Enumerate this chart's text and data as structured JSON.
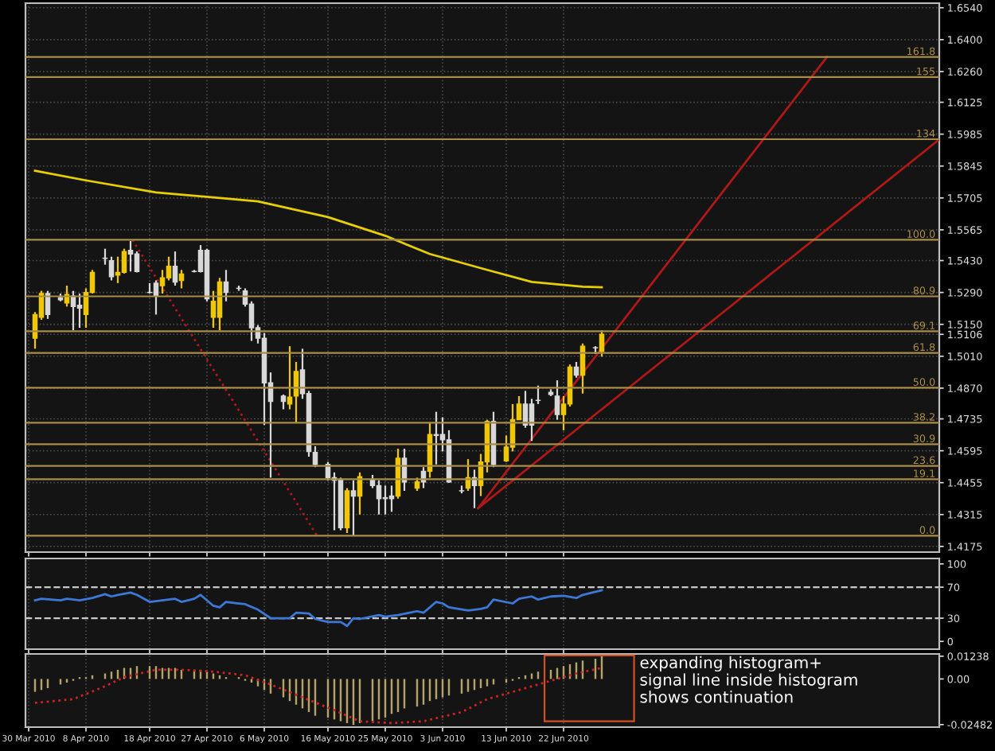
{
  "chart_data": [
    {
      "type": "candlestick",
      "x": [
        "2010-03-31",
        "2010-04-01",
        "2010-04-02",
        "2010-04-04",
        "2010-04-05",
        "2010-04-06",
        "2010-04-07",
        "2010-04-08",
        "2010-04-09",
        "2010-04-11",
        "2010-04-12",
        "2010-04-13",
        "2010-04-14",
        "2010-04-15",
        "2010-04-16",
        "2010-04-18",
        "2010-04-19",
        "2010-04-20",
        "2010-04-21",
        "2010-04-22",
        "2010-04-23",
        "2010-04-25",
        "2010-04-26",
        "2010-04-27",
        "2010-04-28",
        "2010-04-29",
        "2010-04-30",
        "2010-05-02",
        "2010-05-03",
        "2010-05-04",
        "2010-05-05",
        "2010-05-06",
        "2010-05-07",
        "2010-05-09",
        "2010-05-10",
        "2010-05-11",
        "2010-05-12",
        "2010-05-13",
        "2010-05-14",
        "2010-05-16",
        "2010-05-17",
        "2010-05-18",
        "2010-05-19",
        "2010-05-20",
        "2010-05-21",
        "2010-05-23",
        "2010-05-24",
        "2010-05-25",
        "2010-05-26",
        "2010-05-27",
        "2010-05-28",
        "2010-05-30",
        "2010-05-31",
        "2010-06-01",
        "2010-06-02",
        "2010-06-03",
        "2010-06-04",
        "2010-06-06",
        "2010-06-07",
        "2010-06-08",
        "2010-06-09",
        "2010-06-10",
        "2010-06-11",
        "2010-06-13",
        "2010-06-14",
        "2010-06-15",
        "2010-06-16",
        "2010-06-17",
        "2010-06-18",
        "2010-06-20",
        "2010-06-21",
        "2010-06-22",
        "2010-06-23",
        "2010-06-24",
        "2010-06-25",
        "2010-06-27",
        "2010-06-28"
      ],
      "ohlc": [
        [
          1.5089,
          1.5204,
          1.5043,
          1.5193
        ],
        [
          1.5181,
          1.5297,
          1.517,
          1.5285
        ],
        [
          1.5285,
          1.5297,
          1.5174,
          1.5193
        ],
        [
          1.5267,
          1.5285,
          1.5251,
          1.5258
        ],
        [
          1.5244,
          1.532,
          1.5228,
          1.5281
        ],
        [
          1.5274,
          1.5297,
          1.5124,
          1.5228
        ],
        [
          1.5234,
          1.5285,
          1.5135,
          1.5221
        ],
        [
          1.5193,
          1.5308,
          1.5135,
          1.529
        ],
        [
          1.529,
          1.5389,
          1.5285,
          1.5378
        ],
        [
          1.544,
          1.5482,
          1.5412,
          1.544
        ],
        [
          1.5429,
          1.5447,
          1.5343,
          1.5359
        ],
        [
          1.5366,
          1.5447,
          1.5331,
          1.5378
        ],
        [
          1.5378,
          1.5482,
          1.5373,
          1.547
        ],
        [
          1.5475,
          1.5516,
          1.5382,
          1.5459
        ],
        [
          1.5459,
          1.547,
          1.5378,
          1.5382
        ],
        [
          1.529,
          1.5331,
          1.5285,
          1.529
        ],
        [
          1.5331,
          1.5343,
          1.5193,
          1.5274
        ],
        [
          1.532,
          1.5389,
          1.5285,
          1.5354
        ],
        [
          1.5354,
          1.5447,
          1.5343,
          1.5405
        ],
        [
          1.5405,
          1.547,
          1.532,
          1.5336
        ],
        [
          1.5343,
          1.5389,
          1.5308,
          1.5371
        ],
        [
          1.5382,
          1.5389,
          1.5378,
          1.5382
        ],
        [
          1.5475,
          1.5498,
          1.5378,
          1.5382
        ],
        [
          1.5475,
          1.5482,
          1.5251,
          1.5262
        ],
        [
          1.5181,
          1.5297,
          1.5135,
          1.5251
        ],
        [
          1.5181,
          1.5354,
          1.5124,
          1.5336
        ],
        [
          1.5336,
          1.5389,
          1.5251,
          1.529
        ],
        [
          1.5308,
          1.532,
          1.5297,
          1.5308
        ],
        [
          1.5297,
          1.5308,
          1.5228,
          1.5239
        ],
        [
          1.5239,
          1.5251,
          1.5077,
          1.5135
        ],
        [
          1.5135,
          1.5147,
          1.5066,
          1.5089
        ],
        [
          1.5089,
          1.5112,
          1.4708,
          1.4893
        ],
        [
          1.4893,
          1.4939,
          1.4477,
          1.4812
        ],
        [
          1.4835,
          1.4842,
          1.4777,
          1.4812
        ],
        [
          1.48,
          1.5054,
          1.4777,
          1.483
        ],
        [
          1.4835,
          1.4985,
          1.4719,
          1.4943
        ],
        [
          1.495,
          1.5043,
          1.4823,
          1.4846
        ],
        [
          1.4846,
          1.4858,
          1.4569,
          1.4592
        ],
        [
          1.4588,
          1.4615,
          1.4523,
          1.4535
        ],
        [
          1.4535,
          1.4546,
          1.4465,
          1.4477
        ],
        [
          1.4477,
          1.45,
          1.4246,
          1.4465
        ],
        [
          1.4465,
          1.4477,
          1.4246,
          1.4257
        ],
        [
          1.4257,
          1.4431,
          1.4234,
          1.4419
        ],
        [
          1.4419,
          1.4465,
          1.4223,
          1.4396
        ],
        [
          1.4396,
          1.45,
          1.4315,
          1.4481
        ],
        [
          1.4465,
          1.4489,
          1.4431,
          1.4442
        ],
        [
          1.4442,
          1.4465,
          1.4315,
          1.4385
        ],
        [
          1.4389,
          1.4442,
          1.4315,
          1.4385
        ],
        [
          1.4396,
          1.4442,
          1.4327,
          1.4385
        ],
        [
          1.4396,
          1.4604,
          1.4385,
          1.4562
        ],
        [
          1.4562,
          1.4604,
          1.4419,
          1.4458
        ],
        [
          1.4431,
          1.4477,
          1.4419,
          1.4458
        ],
        [
          1.4505,
          1.4523,
          1.4431,
          1.4458
        ],
        [
          1.4505,
          1.4719,
          1.4477,
          1.4666
        ],
        [
          1.4666,
          1.4766,
          1.4535,
          1.4662
        ],
        [
          1.4666,
          1.4742,
          1.4592,
          1.4643
        ],
        [
          1.4643,
          1.4685,
          1.4454,
          1.4458
        ],
        [
          1.4419,
          1.4442,
          1.4408,
          1.4419
        ],
        [
          1.4431,
          1.4558,
          1.4419,
          1.4477
        ],
        [
          1.4477,
          1.4512,
          1.4343,
          1.4442
        ],
        [
          1.4442,
          1.4581,
          1.4396,
          1.4546
        ],
        [
          1.4546,
          1.4731,
          1.45,
          1.4724
        ],
        [
          1.4724,
          1.4766,
          1.4523,
          1.4535
        ],
        [
          1.4551,
          1.4662,
          1.4546,
          1.4611
        ],
        [
          1.4611,
          1.48,
          1.4592,
          1.4731
        ],
        [
          1.4731,
          1.4835,
          1.4731,
          1.48
        ],
        [
          1.48,
          1.4858,
          1.4696,
          1.4708
        ],
        [
          1.48,
          1.4823,
          1.4638,
          1.4708
        ],
        [
          1.4816,
          1.4881,
          1.48,
          1.4816
        ],
        [
          1.4851,
          1.4865,
          1.4835,
          1.4842
        ],
        [
          1.4835,
          1.4904,
          1.4731,
          1.4754
        ],
        [
          1.4754,
          1.4835,
          1.4685,
          1.48
        ],
        [
          1.48,
          1.4974,
          1.4789,
          1.4962
        ],
        [
          1.4962,
          1.4985,
          1.4916,
          1.4927
        ],
        [
          1.4927,
          1.5066,
          1.4846,
          1.5054
        ],
        [
          1.5047,
          1.5054,
          1.502,
          1.5047
        ],
        [
          1.5031,
          1.5124,
          1.5008,
          1.5106
        ]
      ],
      "colors": [
        "#f0c800",
        "#f0c800",
        "#d8d8d8",
        "#d8d8d8",
        "#f0c800",
        "#d8d8d8",
        "#d8d8d8",
        "#f0c800",
        "#f0c800",
        "#d8d8d8",
        "#d8d8d8",
        "#f0c800",
        "#f0c800",
        "#d8d8d8",
        "#d8d8d8",
        "#d8d8d8",
        "#d8d8d8",
        "#f0c800",
        "#f0c800",
        "#d8d8d8",
        "#f0c800",
        "#d8d8d8",
        "#d8d8d8",
        "#d8d8d8",
        "#f0c800",
        "#f0c800",
        "#d8d8d8",
        "#d8d8d8",
        "#d8d8d8",
        "#d8d8d8",
        "#d8d8d8",
        "#d8d8d8",
        "#d8d8d8",
        "#d8d8d8",
        "#f0c800",
        "#f0c800",
        "#d8d8d8",
        "#d8d8d8",
        "#d8d8d8",
        "#d8d8d8",
        "#d8d8d8",
        "#d8d8d8",
        "#f0c800",
        "#d8d8d8",
        "#f0c800",
        "#d8d8d8",
        "#d8d8d8",
        "#d8d8d8",
        "#d8d8d8",
        "#f0c800",
        "#d8d8d8",
        "#f0c800",
        "#d8d8d8",
        "#f0c800",
        "#d8d8d8",
        "#d8d8d8",
        "#d8d8d8",
        "#d8d8d8",
        "#f0c800",
        "#d8d8d8",
        "#f0c800",
        "#f0c800",
        "#d8d8d8",
        "#f0c800",
        "#f0c800",
        "#f0c800",
        "#d8d8d8",
        "#d8d8d8",
        "#d8d8d8",
        "#d8d8d8",
        "#d8d8d8",
        "#f0c800",
        "#f0c800",
        "#d8d8d8",
        "#f0c800",
        "#d8d8d8",
        "#f0c800"
      ],
      "series": [
        {
          "type": "line",
          "x": [
            "2010-03-31",
            "2010-04-08",
            "2010-04-19",
            "2010-05-05",
            "2010-05-16",
            "2010-05-25",
            "2010-06-01",
            "2010-06-10",
            "2010-06-17",
            "2010-06-25",
            "2010-06-28"
          ],
          "values": [
            1.5824,
            1.5782,
            1.5729,
            1.569,
            1.5621,
            1.5539,
            1.5459,
            1.5389,
            1.5336,
            1.5315,
            1.5313
          ],
          "color": "#e8d000"
        },
        {
          "type": "line",
          "x": [
            "2010-04-15T07:00",
            "2010-05-14T07:00"
          ],
          "values": [
            1.5521,
            1.4222
          ],
          "color": "#b01818",
          "line_style": "dotted"
        },
        {
          "type": "line",
          "x": [
            "2010-06-08T14:00",
            "2010-08-02T09:00"
          ],
          "values": [
            1.4343,
            1.6324
          ],
          "color": "#b01818"
        },
        {
          "type": "line",
          "x": [
            "2010-06-08T14:00",
            "2010-08-20"
          ],
          "values": [
            1.4343,
            1.5962
          ],
          "color": "#b01818"
        }
      ],
      "ref_lines": [
        {
          "axis": "y2",
          "value": 161.8,
          "label": "161.8",
          "color": "#a88c48"
        },
        {
          "axis": "y2",
          "value": 155,
          "label": "155",
          "color": "#a88c48"
        },
        {
          "axis": "y2",
          "value": 134,
          "label": "134",
          "color": "#a88c48"
        },
        {
          "axis": "y2",
          "value": 100.0,
          "label": "100.0",
          "color": "#a88c48"
        },
        {
          "axis": "y2",
          "value": 80.9,
          "label": "80.9",
          "color": "#a88c48"
        },
        {
          "axis": "y2",
          "value": 69.1,
          "label": "69.1",
          "color": "#a88c48"
        },
        {
          "axis": "y2",
          "value": 61.8,
          "label": "61.8",
          "color": "#a88c48"
        },
        {
          "axis": "y2",
          "value": 50.0,
          "label": "50.0",
          "color": "#a88c48"
        },
        {
          "axis": "y2",
          "value": 38.2,
          "label": "38.2",
          "color": "#a88c48"
        },
        {
          "axis": "y2",
          "value": 30.9,
          "label": "30.9",
          "color": "#a88c48"
        },
        {
          "axis": "y2",
          "value": 23.6,
          "label": "23.6",
          "color": "#a88c48"
        },
        {
          "axis": "y2",
          "value": 19.1,
          "label": "19.1",
          "color": "#a88c48"
        },
        {
          "axis": "y2",
          "value": 0.0,
          "label": "0.0",
          "color": "#a88c48"
        }
      ],
      "xlim": [
        "2010-03-29T12:00",
        "2010-08-20"
      ],
      "xticks": [
        {
          "value": "2010-03-30",
          "label": null
        },
        {
          "value": "2010-04-08",
          "label": null
        },
        {
          "value": "2010-04-18",
          "label": null
        },
        {
          "value": "2010-04-27",
          "label": null
        },
        {
          "value": "2010-05-06",
          "label": null
        },
        {
          "value": "2010-05-16",
          "label": null
        },
        {
          "value": "2010-05-25",
          "label": null
        },
        {
          "value": "2010-06-03",
          "label": null
        },
        {
          "value": "2010-06-13",
          "label": null
        },
        {
          "value": "2010-06-22",
          "label": null
        }
      ],
      "ylim": [
        1.415,
        1.656
      ],
      "y2lim": [
        -5.54,
        179.98
      ],
      "yticks": [
        {
          "value": 1.654,
          "label": "1.6540"
        },
        {
          "value": 1.64,
          "label": "1.6400"
        },
        {
          "value": 1.626,
          "label": "1.6260"
        },
        {
          "value": 1.6125,
          "label": "1.6125"
        },
        {
          "value": 1.5985,
          "label": "1.5985"
        },
        {
          "value": 1.5845,
          "label": "1.5845"
        },
        {
          "value": 1.5705,
          "label": "1.5705"
        },
        {
          "value": 1.5565,
          "label": "1.5565"
        },
        {
          "value": 1.543,
          "label": "1.5430"
        },
        {
          "value": 1.529,
          "label": "1.5290"
        },
        {
          "value": 1.515,
          "label": "1.5150"
        },
        {
          "value": 1.5106,
          "label": "1.5106"
        },
        {
          "value": 1.501,
          "label": "1.5010"
        },
        {
          "value": 1.487,
          "label": "1.4870"
        },
        {
          "value": 1.4735,
          "label": "1.4735"
        },
        {
          "value": 1.4595,
          "label": "1.4595"
        },
        {
          "value": 1.4455,
          "label": "1.4455"
        },
        {
          "value": 1.4315,
          "label": "1.4315"
        },
        {
          "value": 1.4175,
          "label": "1.4175"
        }
      ],
      "tick_labels": "y",
      "grid": true
    },
    {
      "type": "line",
      "series": [
        {
          "x": [
            "2010-03-31",
            "2010-04-01",
            "2010-04-04",
            "2010-04-05",
            "2010-04-07",
            "2010-04-09",
            "2010-04-11",
            "2010-04-12",
            "2010-04-13",
            "2010-04-15",
            "2010-04-16",
            "2010-04-18",
            "2010-04-20",
            "2010-04-22",
            "2010-04-23",
            "2010-04-25",
            "2010-04-26",
            "2010-04-28",
            "2010-04-29",
            "2010-04-30",
            "2010-05-02",
            "2010-05-03",
            "2010-05-05",
            "2010-05-07",
            "2010-05-10",
            "2010-05-11",
            "2010-05-13",
            "2010-05-14",
            "2010-05-16",
            "2010-05-18",
            "2010-05-19",
            "2010-05-20",
            "2010-05-21",
            "2010-05-24",
            "2010-05-25",
            "2010-05-27",
            "2010-05-30",
            "2010-05-31",
            "2010-06-02",
            "2010-06-03",
            "2010-06-04",
            "2010-06-07",
            "2010-06-09",
            "2010-06-10",
            "2010-06-11",
            "2010-06-14",
            "2010-06-15",
            "2010-06-17",
            "2010-06-18",
            "2010-06-20",
            "2010-06-22",
            "2010-06-24",
            "2010-06-25",
            "2010-06-27",
            "2010-06-28"
          ],
          "values": [
            53,
            55,
            53,
            55,
            53,
            56,
            61,
            58,
            60,
            63,
            60,
            51,
            53,
            55,
            51,
            55,
            60,
            46,
            44,
            51,
            49,
            48,
            41,
            30,
            30,
            37,
            36,
            29,
            25,
            25,
            20,
            30,
            29,
            34,
            32,
            34,
            39,
            37,
            51,
            49,
            44,
            40,
            42,
            44,
            54,
            49,
            55,
            58,
            54,
            58,
            59,
            56,
            60,
            64,
            66
          ],
          "color": "#3c78d8"
        }
      ],
      "ref_lines": [
        {
          "axis": "y",
          "value": 70,
          "color": "#c8c8c8",
          "line_style": "dashed"
        },
        {
          "axis": "y",
          "value": 30,
          "color": "#c8c8c8",
          "line_style": "dashed"
        }
      ],
      "xlim": [
        "2010-03-29T12:00",
        "2010-08-20"
      ],
      "xticks": [
        {
          "value": "2010-03-30",
          "label": null
        },
        {
          "value": "2010-04-08",
          "label": null
        },
        {
          "value": "2010-04-18",
          "label": null
        },
        {
          "value": "2010-04-27",
          "label": null
        },
        {
          "value": "2010-05-06",
          "label": null
        },
        {
          "value": "2010-05-16",
          "label": null
        },
        {
          "value": "2010-05-25",
          "label": null
        },
        {
          "value": "2010-06-03",
          "label": null
        },
        {
          "value": "2010-06-13",
          "label": null
        },
        {
          "value": "2010-06-22",
          "label": null
        }
      ],
      "ylim": [
        -10,
        107
      ],
      "yticks": [
        0,
        30,
        70,
        100
      ],
      "tick_labels": "y",
      "grid": "x"
    },
    {
      "type": "bar",
      "series": [
        {
          "type": "bar",
          "x": [
            "2010-03-31",
            "2010-04-01",
            "2010-04-02",
            "2010-04-04",
            "2010-04-05",
            "2010-04-06",
            "2010-04-07",
            "2010-04-08",
            "2010-04-09",
            "2010-04-11",
            "2010-04-12",
            "2010-04-13",
            "2010-04-14",
            "2010-04-15",
            "2010-04-16",
            "2010-04-18",
            "2010-04-19",
            "2010-04-20",
            "2010-04-21",
            "2010-04-22",
            "2010-04-23",
            "2010-04-25",
            "2010-04-26",
            "2010-04-27",
            "2010-04-28",
            "2010-04-29",
            "2010-04-30",
            "2010-05-02",
            "2010-05-03",
            "2010-05-04",
            "2010-05-05",
            "2010-05-06",
            "2010-05-07",
            "2010-05-09",
            "2010-05-10",
            "2010-05-11",
            "2010-05-12",
            "2010-05-13",
            "2010-05-14",
            "2010-05-16",
            "2010-05-17",
            "2010-05-18",
            "2010-05-19",
            "2010-05-20",
            "2010-05-21",
            "2010-05-23",
            "2010-05-24",
            "2010-05-25",
            "2010-05-26",
            "2010-05-27",
            "2010-05-28",
            "2010-05-30",
            "2010-05-31",
            "2010-06-01",
            "2010-06-02",
            "2010-06-03",
            "2010-06-04",
            "2010-06-06",
            "2010-06-07",
            "2010-06-08",
            "2010-06-09",
            "2010-06-10",
            "2010-06-11",
            "2010-06-13",
            "2010-06-14",
            "2010-06-15",
            "2010-06-16",
            "2010-06-17",
            "2010-06-18",
            "2010-06-20",
            "2010-06-21",
            "2010-06-22",
            "2010-06-23",
            "2010-06-24",
            "2010-06-25",
            "2010-06-27",
            "2010-06-28"
          ],
          "values": [
            -0.007,
            -0.006,
            -0.005,
            -0.003,
            -0.002,
            -0.001,
            0.001,
            0.001,
            0.002,
            0.003,
            0.004,
            0.005,
            0.006,
            0.006,
            0.007,
            0.007,
            0.007,
            0.006,
            0.006,
            0.006,
            0.005,
            0.005,
            0.005,
            0.004,
            0.003,
            0.002,
            0.001,
            0.001,
            -0.001,
            -0.002,
            -0.004,
            -0.006,
            -0.008,
            -0.01,
            -0.012,
            -0.014,
            -0.016,
            -0.018,
            -0.02,
            -0.021,
            -0.022,
            -0.023,
            -0.024,
            -0.025,
            -0.024,
            -0.023,
            -0.022,
            -0.021,
            -0.019,
            -0.018,
            -0.016,
            -0.015,
            -0.014,
            -0.012,
            -0.011,
            -0.01,
            -0.009,
            -0.008,
            -0.007,
            -0.006,
            -0.005,
            -0.004,
            -0.003,
            -0.002,
            -0.001,
            0.001,
            0.002,
            0.003,
            0.004,
            0.005,
            0.006,
            0.007,
            0.008,
            0.009,
            0.01,
            0.011,
            0.01238
          ],
          "color": "#b3a46c"
        },
        {
          "type": "line",
          "x": [
            "2010-03-31",
            "2010-04-06",
            "2010-04-11",
            "2010-04-14",
            "2010-04-19",
            "2010-04-23",
            "2010-04-28",
            "2010-05-03",
            "2010-05-07",
            "2010-05-12",
            "2010-05-17",
            "2010-05-21",
            "2010-05-26",
            "2010-05-31",
            "2010-06-06",
            "2010-06-10",
            "2010-06-15",
            "2010-06-20",
            "2010-06-24",
            "2010-06-28"
          ],
          "values": [
            -0.013,
            -0.011,
            -0.004,
            0.001,
            0.005,
            0.005,
            0.004,
            0.002,
            -0.003,
            -0.01,
            -0.017,
            -0.023,
            -0.024,
            -0.023,
            -0.018,
            -0.011,
            -0.006,
            -0.001,
            0.003,
            0.006
          ],
          "color": "#d02020",
          "line_style": "dotted"
        }
      ],
      "annotations": [
        "expanding histogram+\nsignal line inside histogram\nshows continuation"
      ],
      "xlim": [
        "2010-03-29T12:00",
        "2010-08-20"
      ],
      "xticks": [
        {
          "value": "2010-03-30",
          "label": "30 Mar 2010"
        },
        {
          "value": "2010-04-08",
          "label": "8 Apr 2010"
        },
        {
          "value": "2010-04-18",
          "label": "18 Apr 2010"
        },
        {
          "value": "2010-04-27",
          "label": "27 Apr 2010"
        },
        {
          "value": "2010-05-06",
          "label": "6 May 2010"
        },
        {
          "value": "2010-05-16",
          "label": "16 May 2010"
        },
        {
          "value": "2010-05-25",
          "label": "25 May 2010"
        },
        {
          "value": "2010-06-03",
          "label": "3 Jun 2010"
        },
        {
          "value": "2010-06-13",
          "label": "13 Jun 2010"
        },
        {
          "value": "2010-06-22",
          "label": "22 Jun 2010"
        }
      ],
      "ylim": [
        -0.0262,
        0.0136
      ],
      "yticks": [
        {
          "value": 0.01238,
          "label": "0.01238"
        },
        {
          "value": 0,
          "label": "0.00"
        },
        {
          "value": -0.02482,
          "label": "-0.02482"
        }
      ],
      "grid": "x"
    }
  ]
}
